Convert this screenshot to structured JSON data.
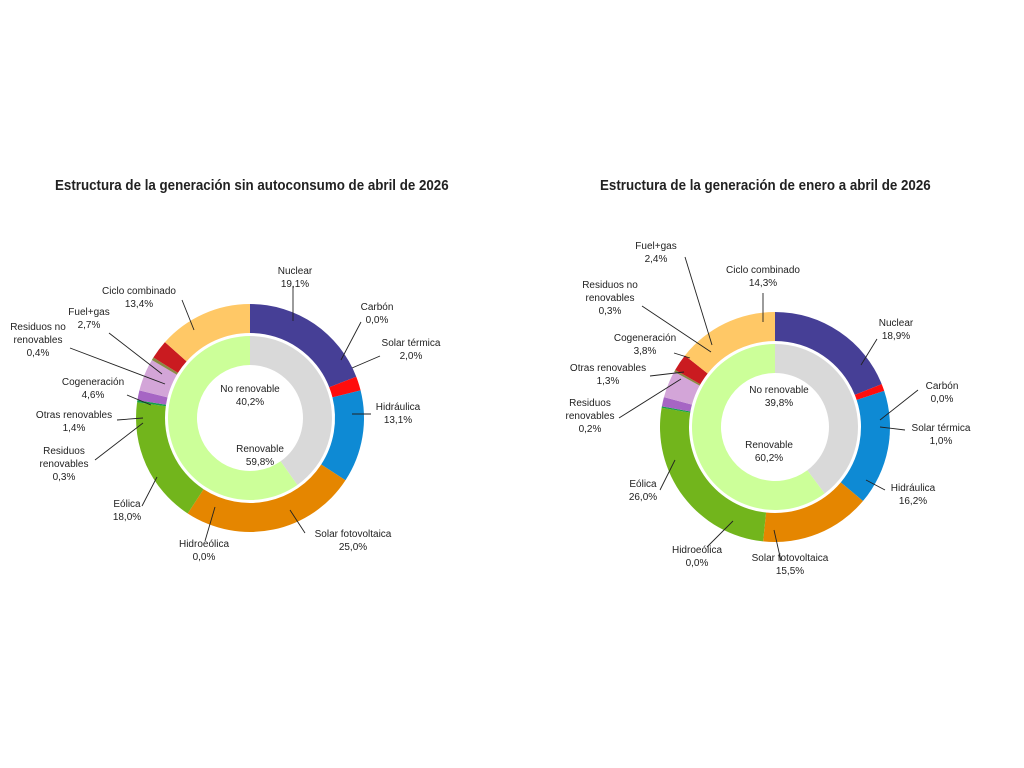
{
  "chart_data": [
    {
      "type": "pie",
      "title": "Estructura de la generación sin autoconsumo de abril de 2026",
      "outer_ring": [
        {
          "name": "Nuclear",
          "value": 19.1,
          "label": "19,1%",
          "color": "#463F96"
        },
        {
          "name": "Carbón",
          "value": 0.0,
          "label": "0,0%",
          "color": "#6E1111"
        },
        {
          "name": "Solar térmica",
          "value": 2.0,
          "label": "2,0%",
          "color": "#FF0D0D"
        },
        {
          "name": "Hidráulica",
          "value": 13.1,
          "label": "13,1%",
          "color": "#0E8AD4"
        },
        {
          "name": "Solar fotovoltaica",
          "value": 25.0,
          "label": "25,0%",
          "color": "#E58600"
        },
        {
          "name": "Hidroeólica",
          "value": 0.0,
          "label": "0,0%",
          "color": "#0B8F8F"
        },
        {
          "name": "Eólica",
          "value": 18.0,
          "label": "18,0%",
          "color": "#72B51C"
        },
        {
          "name": "Residuos renovables",
          "value": 0.3,
          "label": "0,3%",
          "color": "#13A04A"
        },
        {
          "name": "Otras renovables",
          "value": 1.4,
          "label": "1,4%",
          "color": "#A665C4"
        },
        {
          "name": "Cogeneración",
          "value": 4.6,
          "label": "4,6%",
          "color": "#D3A5D8"
        },
        {
          "name": "Residuos no renovables",
          "value": 0.4,
          "label": "0,4%",
          "color": "#8A8A45"
        },
        {
          "name": "Fuel+gas",
          "value": 2.7,
          "label": "2,7%",
          "color": "#CA1B20"
        },
        {
          "name": "Ciclo combinado",
          "value": 13.4,
          "label": "13,4%",
          "color": "#FFC866"
        }
      ],
      "inner_ring": [
        {
          "name": "No renovable",
          "value": 40.2,
          "label": "40,2%",
          "color": "#D9D9D9"
        },
        {
          "name": "Renovable",
          "value": 59.8,
          "label": "59,8%",
          "color": "#CCFF99"
        }
      ]
    },
    {
      "type": "pie",
      "title": "Estructura de la generación de enero a abril de 2026",
      "outer_ring": [
        {
          "name": "Nuclear",
          "value": 18.9,
          "label": "18,9%",
          "color": "#463F96"
        },
        {
          "name": "Carbón",
          "value": 0.0,
          "label": "0,0%",
          "color": "#6E1111"
        },
        {
          "name": "Solar térmica",
          "value": 1.0,
          "label": "1,0%",
          "color": "#FF0D0D"
        },
        {
          "name": "Hidráulica",
          "value": 16.2,
          "label": "16,2%",
          "color": "#0E8AD4"
        },
        {
          "name": "Solar fotovoltaica",
          "value": 15.5,
          "label": "15,5%",
          "color": "#E58600"
        },
        {
          "name": "Hidroeólica",
          "value": 0.0,
          "label": "0,0%",
          "color": "#0B8F8F"
        },
        {
          "name": "Eólica",
          "value": 26.0,
          "label": "26,0%",
          "color": "#72B51C"
        },
        {
          "name": "Residuos renovables",
          "value": 0.2,
          "label": "0,2%",
          "color": "#13A04A"
        },
        {
          "name": "Otras renovables",
          "value": 1.3,
          "label": "1,3%",
          "color": "#A665C4"
        },
        {
          "name": "Cogeneración",
          "value": 3.8,
          "label": "3,8%",
          "color": "#D3A5D8"
        },
        {
          "name": "Residuos no renovables",
          "value": 0.3,
          "label": "0,3%",
          "color": "#8A8A45"
        },
        {
          "name": "Fuel+gas",
          "value": 2.4,
          "label": "2,4%",
          "color": "#CA1B20"
        },
        {
          "name": "Ciclo combinado",
          "value": 14.3,
          "label": "14,3%",
          "color": "#FFC866"
        }
      ],
      "inner_ring": [
        {
          "name": "No renovable",
          "value": 39.8,
          "label": "39,8%",
          "color": "#D9D9D9"
        },
        {
          "name": "Renovable",
          "value": 60.2,
          "label": "60,2%",
          "color": "#CCFF99"
        }
      ]
    }
  ]
}
